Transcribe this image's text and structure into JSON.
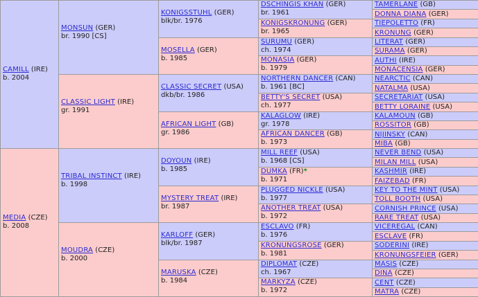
{
  "gen1": [
    {
      "name": "CAMILL",
      "country": "(IRE)",
      "info": "b. 2004",
      "sex": "m"
    },
    {
      "name": "MEDIA",
      "country": "(CZE)",
      "info": "b. 2008",
      "sex": "f"
    }
  ],
  "gen2": [
    {
      "name": "MONSUN",
      "country": "(GER)",
      "info": "br. 1990 [CS]",
      "sex": "m"
    },
    {
      "name": "CLASSIC LIGHT",
      "country": "(IRE)",
      "info": "gr. 1991",
      "sex": "f"
    },
    {
      "name": "TRIBAL INSTINCT",
      "country": "(IRE)",
      "info": "b. 1998",
      "sex": "m"
    },
    {
      "name": "MOUDRA",
      "country": "(CZE)",
      "info": "b. 2000",
      "sex": "f"
    }
  ],
  "gen3": [
    {
      "name": "KONIGSSTUHL",
      "country": "(GER)",
      "info": "blk/br. 1976",
      "sex": "m"
    },
    {
      "name": "MOSELLA",
      "country": "(GER)",
      "info": "b. 1985",
      "sex": "f"
    },
    {
      "name": "CLASSIC SECRET",
      "country": "(USA)",
      "info": "dkb/br. 1986",
      "sex": "m"
    },
    {
      "name": "AFRICAN LIGHT",
      "country": "(GB)",
      "info": "gr. 1986",
      "sex": "f"
    },
    {
      "name": "DOYOUN",
      "country": "(IRE)",
      "info": "b. 1985",
      "sex": "m"
    },
    {
      "name": "MYSTERY TREAT",
      "country": "(IRE)",
      "info": "br. 1987",
      "sex": "f"
    },
    {
      "name": "KARLOFF",
      "country": "(GER)",
      "info": "blk/br. 1987",
      "sex": "m"
    },
    {
      "name": "MARUSKA",
      "country": "(CZE)",
      "info": "b. 1984",
      "sex": "f"
    }
  ],
  "gen4": [
    {
      "name": "DSCHINGIS KHAN",
      "country": "(GER)",
      "info": "br. 1961",
      "sex": "m"
    },
    {
      "name": "KONIGSKRONUNG",
      "country": "(GER)",
      "info": "br. 1965",
      "sex": "f"
    },
    {
      "name": "SURUMU",
      "country": "(GER)",
      "info": "ch. 1974",
      "sex": "m"
    },
    {
      "name": "MONASIA",
      "country": "(GER)",
      "info": "b. 1979",
      "sex": "f"
    },
    {
      "name": "NORTHERN DANCER",
      "country": "(CAN)",
      "info": "b. 1961 [BC]",
      "sex": "m"
    },
    {
      "name": "BETTY'S SECRET",
      "country": "(USA)",
      "info": "ch. 1977",
      "sex": "f"
    },
    {
      "name": "KALAGLOW",
      "country": "(IRE)",
      "info": "gr. 1978",
      "sex": "m"
    },
    {
      "name": "AFRICAN DANCER",
      "country": "(GB)",
      "info": "b. 1973",
      "sex": "f"
    },
    {
      "name": "MILL REEF",
      "country": "(USA)",
      "info": "b. 1968 [CS]",
      "sex": "m"
    },
    {
      "name": "DUMKA",
      "country": "(FR)",
      "info": "b. 1971",
      "sex": "f",
      "star": "*"
    },
    {
      "name": "PLUGGED NICKLE",
      "country": "(USA)",
      "info": "b. 1977",
      "sex": "m"
    },
    {
      "name": "ANOTHER TREAT",
      "country": "(USA)",
      "info": "b. 1972",
      "sex": "f"
    },
    {
      "name": "ESCLAVO",
      "country": "(FR)",
      "info": "b. 1976",
      "sex": "m"
    },
    {
      "name": "KRONUNGSROSE",
      "country": "(GER)",
      "info": "b. 1981",
      "sex": "f"
    },
    {
      "name": "DIPLOMAT",
      "country": "(CZE)",
      "info": "ch. 1967",
      "sex": "m"
    },
    {
      "name": "MARKYZA",
      "country": "(CZE)",
      "info": "b. 1972",
      "sex": "f"
    }
  ],
  "gen5": [
    {
      "name": "TAMERLANE",
      "country": "(GB)",
      "sex": "m"
    },
    {
      "name": "DONNA DIANA",
      "country": "(GER)",
      "sex": "f"
    },
    {
      "name": "TIEPOLETTO",
      "country": "(FR)",
      "sex": "m"
    },
    {
      "name": "KRONUNG",
      "country": "(GER)",
      "sex": "f"
    },
    {
      "name": "LITERAT",
      "country": "(GER)",
      "sex": "m"
    },
    {
      "name": "SURAMA",
      "country": "(GER)",
      "sex": "f"
    },
    {
      "name": "AUTHI",
      "country": "(IRE)",
      "sex": "m"
    },
    {
      "name": "MONACENSIA",
      "country": "(GER)",
      "sex": "f"
    },
    {
      "name": "NEARCTIC",
      "country": "(CAN)",
      "sex": "m"
    },
    {
      "name": "NATALMA",
      "country": "(USA)",
      "sex": "f"
    },
    {
      "name": "SECRETARIAT",
      "country": "(USA)",
      "sex": "m"
    },
    {
      "name": "BETTY LORAINE",
      "country": "(USA)",
      "sex": "f"
    },
    {
      "name": "KALAMOUN",
      "country": "(GB)",
      "sex": "m"
    },
    {
      "name": "ROSSITOR",
      "country": "(GB)",
      "sex": "f"
    },
    {
      "name": "NIJINSKY",
      "country": "(CAN)",
      "sex": "m"
    },
    {
      "name": "MIBA",
      "country": "(GB)",
      "sex": "f"
    },
    {
      "name": "NEVER BEND",
      "country": "(USA)",
      "sex": "m"
    },
    {
      "name": "MILAN MILL",
      "country": "(USA)",
      "sex": "f"
    },
    {
      "name": "KASHMIR",
      "country": "(IRE)",
      "sex": "m"
    },
    {
      "name": "FAIZEBAD",
      "country": "(FR)",
      "sex": "f"
    },
    {
      "name": "KEY TO THE MINT",
      "country": "(USA)",
      "sex": "m"
    },
    {
      "name": "TOLL BOOTH",
      "country": "(USA)",
      "sex": "f"
    },
    {
      "name": "CORNISH PRINCE",
      "country": "(USA)",
      "sex": "m"
    },
    {
      "name": "RARE TREAT",
      "country": "(USA)",
      "sex": "f"
    },
    {
      "name": "VICEREGAL",
      "country": "(CAN)",
      "sex": "m"
    },
    {
      "name": "ESCLAVE",
      "country": "(FR)",
      "sex": "f"
    },
    {
      "name": "SODERINI",
      "country": "(IRE)",
      "sex": "m"
    },
    {
      "name": "KRONUNGSFEIER",
      "country": "(GER)",
      "sex": "f"
    },
    {
      "name": "MASIS",
      "country": "(CZE)",
      "sex": "m"
    },
    {
      "name": "DINA",
      "country": "(CZE)",
      "sex": "f"
    },
    {
      "name": "CENT",
      "country": "(CZE)",
      "sex": "m"
    },
    {
      "name": "MATRA",
      "country": "(CZE)",
      "sex": "f"
    }
  ],
  "colors": {
    "male": "#ccccfb",
    "female": "#fccccc",
    "link": "#2b2bd0",
    "border": "#9b9b9b",
    "star": "#1a8f1a"
  }
}
